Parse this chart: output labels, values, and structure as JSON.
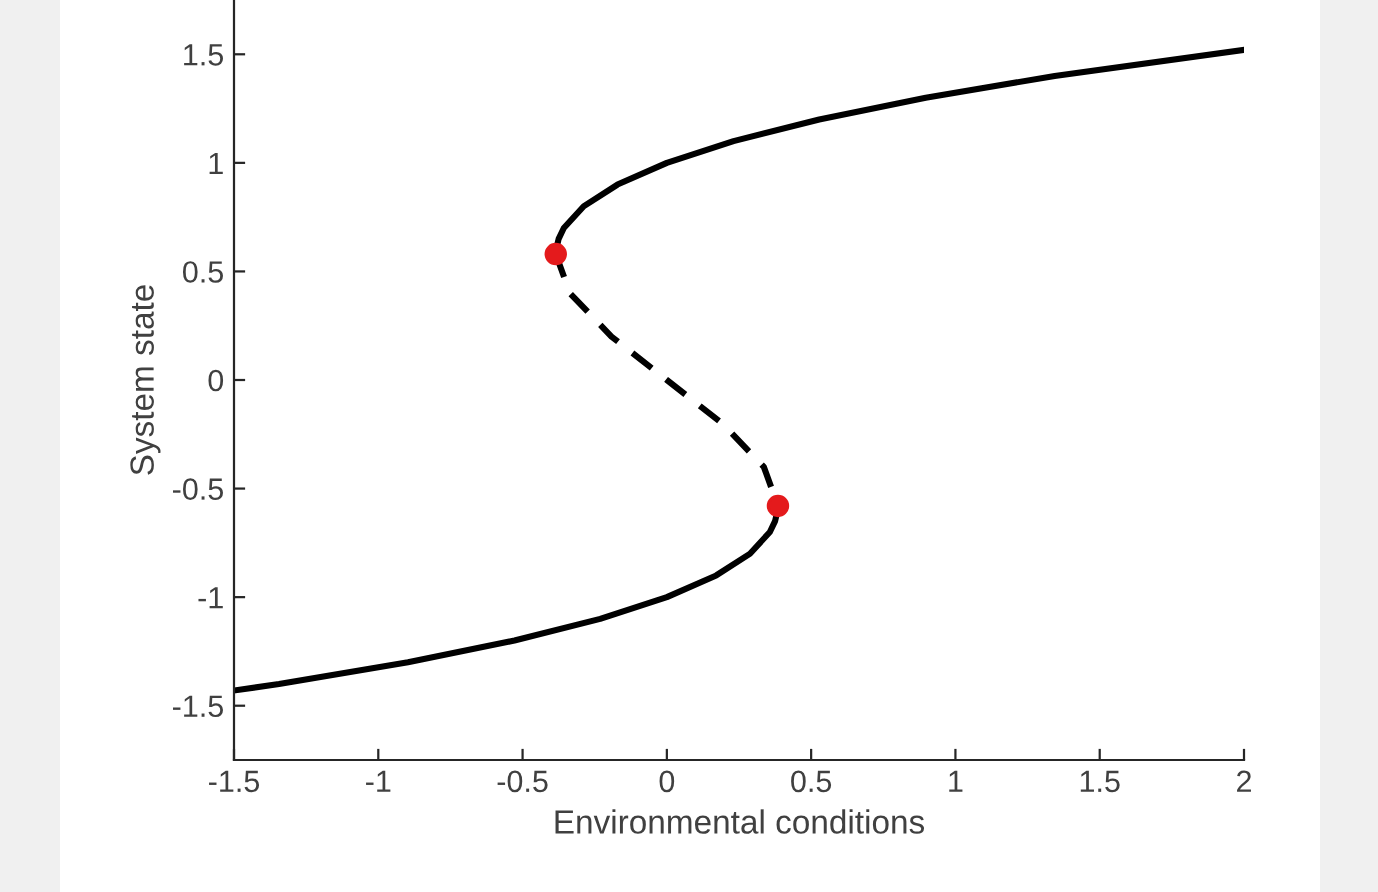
{
  "chart_data": {
    "type": "line",
    "xlabel": "Environmental conditions",
    "ylabel": "System state",
    "xlim": [
      -1.5,
      2
    ],
    "xticks": [
      -1.5,
      -1,
      -0.5,
      0,
      0.5,
      1,
      1.5,
      2
    ],
    "ylim": [
      -1.75,
      1.75
    ],
    "yticks": [
      -1.5,
      -1,
      -0.5,
      0,
      0.5,
      1,
      1.5
    ],
    "grid": false,
    "legend": false,
    "series": [
      {
        "color": "#000000",
        "line_style": "solid",
        "marker": "none",
        "x": [
          -0.385,
          -0.384,
          -0.375,
          -0.357,
          -0.288,
          -0.171,
          0,
          0.231,
          0.528,
          0.897,
          1.344,
          2
        ],
        "values": [
          0.58,
          0.6,
          0.65,
          0.7,
          0.8,
          0.9,
          1.0,
          1.1,
          1.2,
          1.3,
          1.4,
          1.52
        ]
      },
      {
        "color": "#000000",
        "line_style": "dashed",
        "marker": "none",
        "x": [
          -0.385,
          -0.336,
          -0.192,
          0,
          0.192,
          0.336,
          0.385
        ],
        "values": [
          0.58,
          0.4,
          0.2,
          0,
          -0.2,
          -0.4,
          -0.58
        ]
      },
      {
        "color": "#000000",
        "line_style": "solid",
        "marker": "none",
        "x": [
          -1.5,
          -1.344,
          -0.897,
          -0.528,
          -0.231,
          0,
          0.171,
          0.288,
          0.357,
          0.375,
          0.384,
          0.385
        ],
        "values": [
          -1.43,
          -1.4,
          -1.3,
          -1.2,
          -1.1,
          -1.0,
          -0.9,
          -0.8,
          -0.7,
          -0.65,
          -0.6,
          -0.58
        ]
      },
      {
        "type": "scatter",
        "color": "#e41a1c",
        "marker": "circle",
        "x": [
          -0.385,
          0.385
        ],
        "values": [
          0.58,
          -0.58
        ]
      }
    ]
  }
}
